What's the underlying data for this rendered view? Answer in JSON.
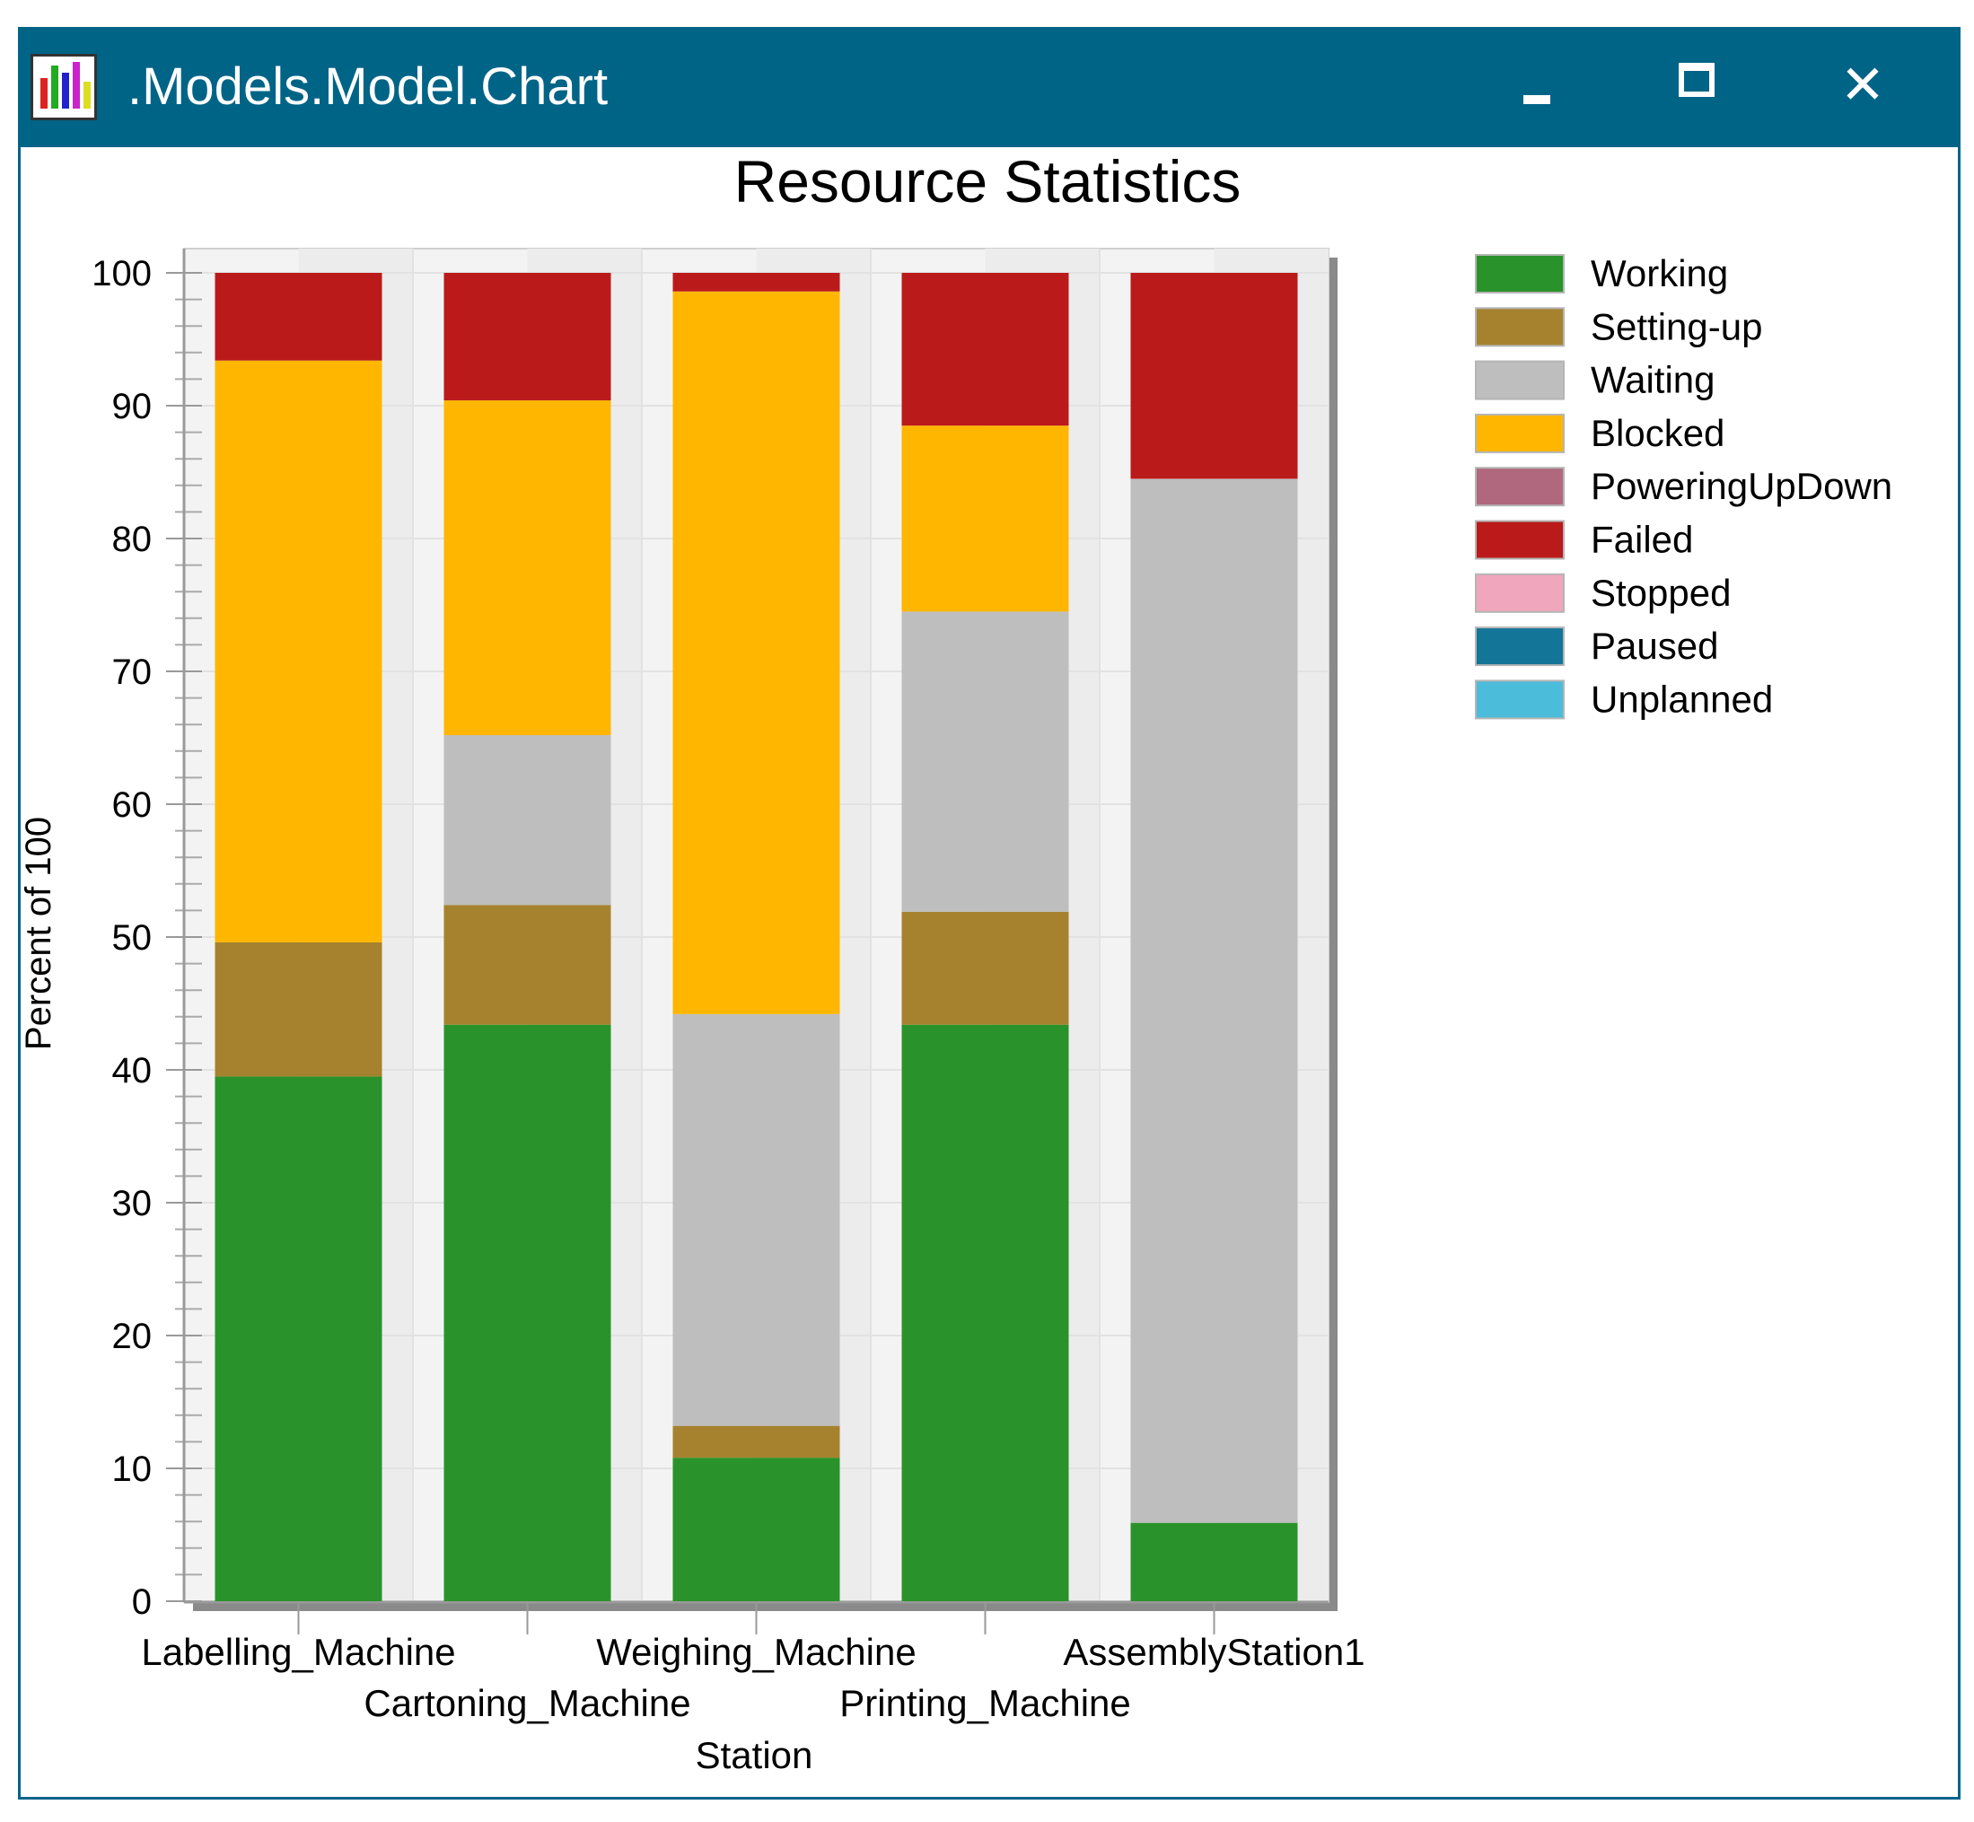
{
  "window": {
    "title": ".Models.Model.Chart",
    "close_glyph": "✕"
  },
  "colors": {
    "titlebar": "#006487",
    "Working": "#2a922a",
    "Setting-up": "#a6822e",
    "Waiting": "#bebebe",
    "Blocked": "#ffb600",
    "PoweringUpDown": "#b0687e",
    "Failed": "#bb1a1a",
    "Stopped": "#f0a6bc",
    "Paused": "#137597",
    "Unplanned": "#4cbcdb"
  },
  "chart_data": {
    "type": "bar",
    "stacked": true,
    "title": "Resource Statistics",
    "xlabel": "Station",
    "ylabel": "Percent of 100",
    "ylim": [
      0,
      100
    ],
    "yticks": [
      0,
      10,
      20,
      30,
      40,
      50,
      60,
      70,
      80,
      90,
      100
    ],
    "categories": [
      "Labelling_Machine",
      "Cartoning_Machine",
      "Weighing_Machine",
      "Printing_Machine",
      "AssemblyStation1"
    ],
    "legend_position": "right",
    "series": [
      {
        "name": "Working",
        "values": [
          39.5,
          43.4,
          10.8,
          43.4,
          5.9
        ]
      },
      {
        "name": "Setting-up",
        "values": [
          10.1,
          9.0,
          2.4,
          8.5,
          0
        ]
      },
      {
        "name": "Waiting",
        "values": [
          0,
          12.8,
          31.0,
          22.6,
          78.6
        ]
      },
      {
        "name": "Blocked",
        "values": [
          43.8,
          25.2,
          54.4,
          14.0,
          0
        ]
      },
      {
        "name": "PoweringUpDown",
        "values": [
          0,
          0,
          0,
          0,
          0
        ]
      },
      {
        "name": "Failed",
        "values": [
          6.6,
          9.6,
          1.4,
          11.5,
          15.5
        ]
      },
      {
        "name": "Stopped",
        "values": [
          0,
          0,
          0,
          0,
          0
        ]
      },
      {
        "name": "Paused",
        "values": [
          0,
          0,
          0,
          0,
          0
        ]
      },
      {
        "name": "Unplanned",
        "values": [
          0,
          0,
          0,
          0,
          0
        ]
      }
    ]
  }
}
